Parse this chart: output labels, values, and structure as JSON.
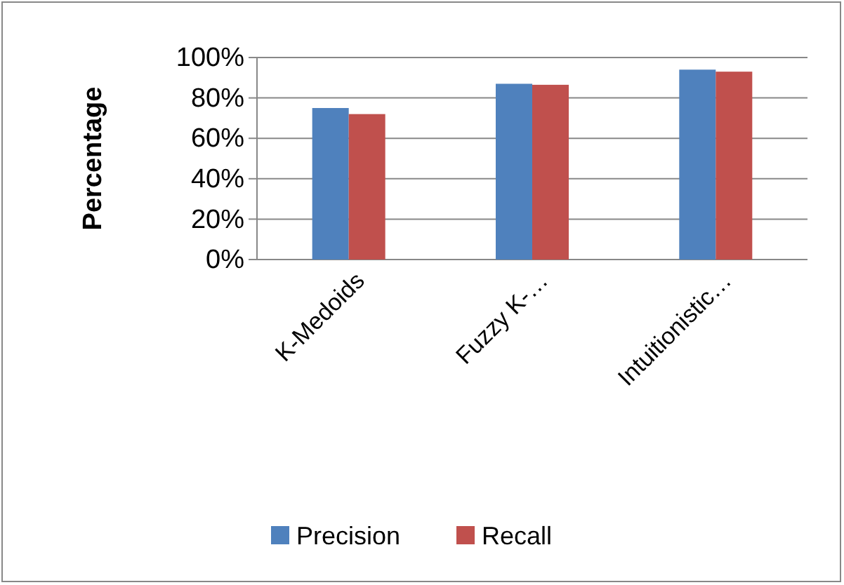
{
  "chart_data": {
    "type": "bar",
    "ylabel": "Percentage",
    "categories": [
      "K-Medoids",
      "Fuzzy K-…",
      "Intuitionistic…"
    ],
    "series": [
      {
        "name": "Precision",
        "color": "#4f81bd",
        "values": [
          75,
          87,
          94
        ]
      },
      {
        "name": "Recall",
        "color": "#c0504d",
        "values": [
          72,
          86.5,
          93
        ]
      }
    ],
    "ylim": [
      0,
      100
    ],
    "yticks": [
      {
        "value": 0,
        "label": "0%"
      },
      {
        "value": 20,
        "label": "20%"
      },
      {
        "value": 40,
        "label": "40%"
      },
      {
        "value": 60,
        "label": "60%"
      },
      {
        "value": 80,
        "label": "80%"
      },
      {
        "value": 100,
        "label": "100%"
      }
    ],
    "grid": "y",
    "legend": "bottom"
  }
}
